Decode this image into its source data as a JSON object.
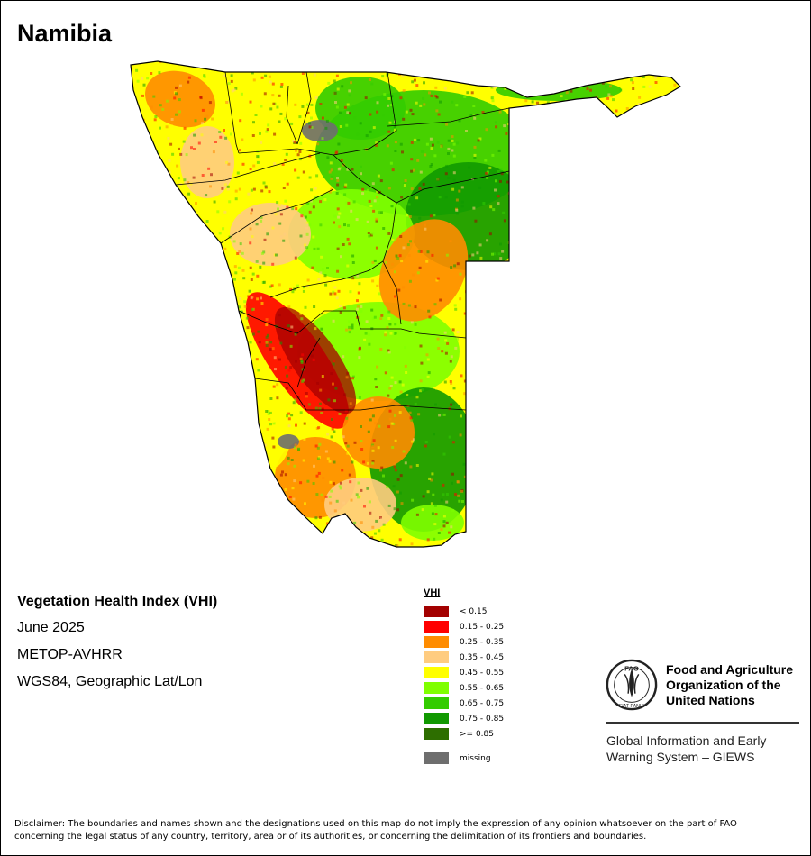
{
  "title": "Namibia",
  "info": {
    "index_name": "Vegetation Health Index (VHI)",
    "period": "June 2025",
    "sensor": "METOP-AVHRR",
    "projection": "WGS84, Geographic Lat/Lon"
  },
  "legend": {
    "title": "VHI",
    "items": [
      {
        "label": "< 0.15",
        "color": "#a30000"
      },
      {
        "label": "0.15 - 0.25",
        "color": "#ff0000"
      },
      {
        "label": "0.25 - 0.35",
        "color": "#ff8c00"
      },
      {
        "label": "0.35 - 0.45",
        "color": "#ffcc80"
      },
      {
        "label": "0.45 - 0.55",
        "color": "#ffff00"
      },
      {
        "label": "0.55 - 0.65",
        "color": "#7fff00"
      },
      {
        "label": "0.65 - 0.75",
        "color": "#33cc00"
      },
      {
        "label": "0.75 - 0.85",
        "color": "#119900"
      },
      {
        "label": ">= 0.85",
        "color": "#2d6e00"
      }
    ],
    "missing": {
      "label": "missing",
      "color": "#6e6e6e"
    }
  },
  "org": {
    "name_lines": [
      "Food and Agriculture",
      "Organization of the",
      "United Nations"
    ],
    "system_lines": [
      "Global Information and Early",
      "Warning System – GIEWS"
    ],
    "logo_letters": "FAO",
    "logo_motto": "FIAT PANIS"
  },
  "disclaimer": [
    "Disclaimer: The boundaries and names shown and the designations used on this map do not imply the expression of any opinion whatsoever on the part of FAO",
    "concerning the legal status of any country, territory, area or of its authorities, or concerning the delimitation of its frontiers and boundaries."
  ]
}
